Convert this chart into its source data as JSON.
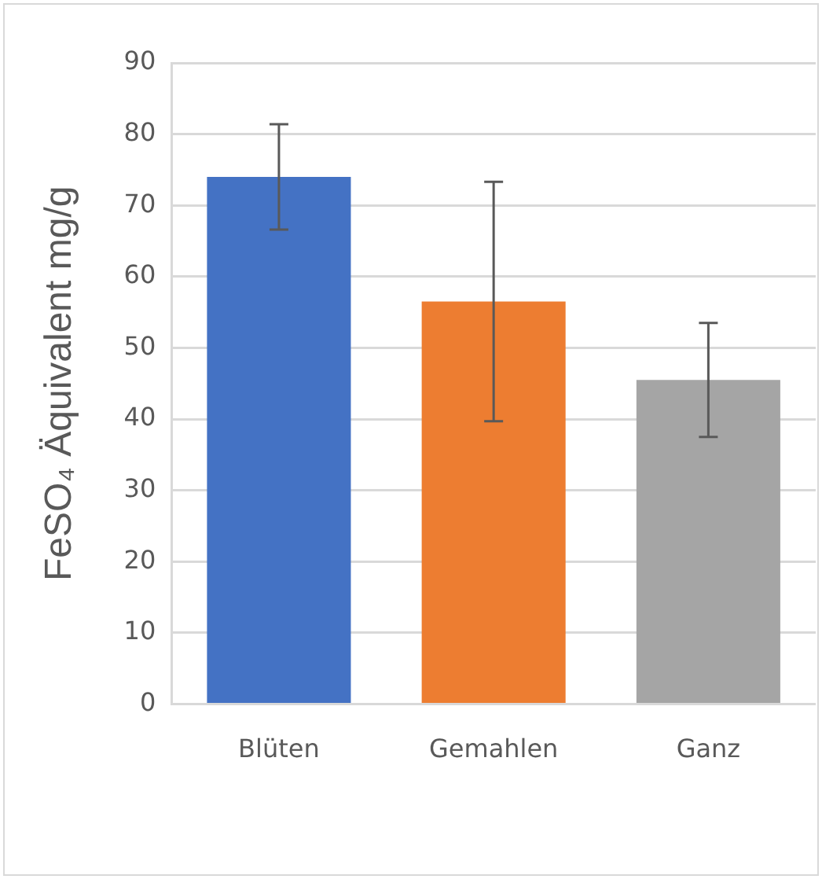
{
  "chart_data": {
    "type": "bar",
    "ylabel": "FeSO₄ Äquivalent mg/g",
    "categories": [
      "Blüten",
      "Gemahlen",
      "Ganz"
    ],
    "values": [
      74,
      56.5,
      45.5
    ],
    "colors": [
      "#4472c4",
      "#ed7d31",
      "#a5a5a5"
    ],
    "errors": [
      7.4,
      16.8,
      8
    ],
    "ylim": [
      0,
      90
    ],
    "yticks": [
      0,
      10,
      20,
      30,
      40,
      50,
      60,
      70,
      80,
      90
    ],
    "grid": "y",
    "legend": false
  }
}
